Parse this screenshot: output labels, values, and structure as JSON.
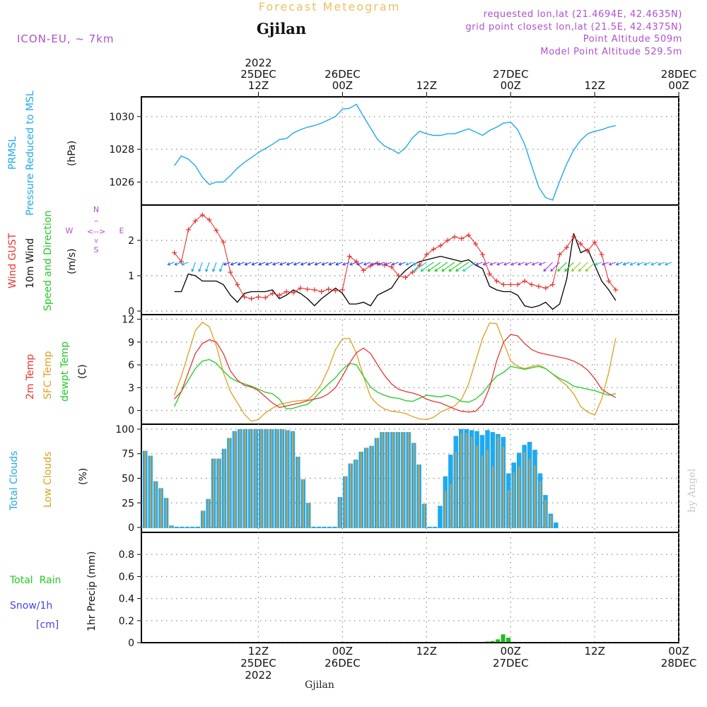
{
  "header": {
    "title": "Forecast Meteogram",
    "location": "Gjilan",
    "model": "ICON-EU, ~ 7km",
    "requested": "requested lon,lat (21.4694E, 42.4635N)",
    "grid_point": "grid point closest lon,lat (21.5E, 42.4375N)",
    "point_altitude": "Point Altitude 509m",
    "model_altitude": "Model Point Altitude 529.5m",
    "footer_location": "Gjilan",
    "watermark": "by Angel"
  },
  "time_axis": {
    "top": [
      {
        "lines": [
          "2022",
          "25DEC",
          "12Z"
        ]
      },
      {
        "lines": [
          "26DEC",
          "00Z"
        ]
      },
      {
        "lines": [
          "12Z"
        ]
      },
      {
        "lines": [
          "27DEC",
          "00Z"
        ]
      },
      {
        "lines": [
          "12Z"
        ]
      },
      {
        "lines": [
          "28DEC",
          "00Z"
        ]
      }
    ],
    "bottom": [
      {
        "lines": [
          "12Z",
          "25DEC",
          "2022"
        ]
      },
      {
        "lines": [
          "00Z",
          "26DEC"
        ]
      },
      {
        "lines": [
          "12Z"
        ]
      },
      {
        "lines": [
          "00Z",
          "27DEC"
        ]
      },
      {
        "lines": [
          "12Z"
        ]
      },
      {
        "lines": [
          "00Z",
          "28DEC"
        ]
      }
    ]
  },
  "panels": {
    "pressure": {
      "labels": [
        "PRMSL",
        "Pressure Reduced to MSL"
      ],
      "unit": "(hPa)"
    },
    "wind": {
      "labels": [
        "Wind GUST",
        "10m Wind",
        "Speed and Direction"
      ],
      "unit": "(m/s)",
      "compass": {
        "n": "N",
        "s": "S",
        "w": "W",
        "e": "E"
      }
    },
    "temp": {
      "labels": [
        "2m Temp",
        "SFC Temp",
        "dewpt Temp"
      ],
      "unit": "(C)"
    },
    "clouds": {
      "labels": [
        "Total Clouds",
        "Low Clouds"
      ],
      "unit": "(%)"
    },
    "precip": {
      "labels": [
        "Total  Rain",
        "Snow/1h",
        "[cm]"
      ],
      "unit": "1hr Precip (mm)"
    }
  },
  "colors": {
    "pressure": "#1fa9ee",
    "gust": "#ee3333",
    "wind": "#000000",
    "sfc_temp": "#dda020",
    "dewpt": "#22cc22",
    "total_cloud": "#1fa9ee",
    "low_cloud": "#c8a050",
    "rain": "#22bb22",
    "snow": "#4444ee",
    "header_purple": "#b050d0",
    "title_orange": "#f0c060"
  },
  "chart_data": [
    {
      "type": "line",
      "title": "PRMSL Pressure Reduced to MSL",
      "ylabel": "hPa",
      "x_unit": "hours from 25DEC 00Z",
      "ylim": [
        1024.6,
        1031.2
      ],
      "yticks": [
        1026,
        1028,
        1030
      ],
      "x": [
        0,
        1,
        2,
        3,
        4,
        5,
        6,
        7,
        8,
        9,
        10,
        11,
        12,
        13,
        14,
        15,
        16,
        17,
        18,
        19,
        20,
        21,
        22,
        23,
        24,
        25,
        26,
        27,
        28,
        29,
        30,
        31,
        32,
        33,
        34,
        35,
        36,
        37,
        38,
        39,
        40,
        41,
        42,
        43,
        44,
        45,
        46,
        47,
        48,
        49,
        50,
        51,
        52,
        53,
        54,
        55,
        56,
        57,
        58,
        59,
        60,
        61,
        62,
        63
      ],
      "series": [
        {
          "name": "PRMSL",
          "values": [
            1027.0,
            1027.6,
            1027.4,
            1027.0,
            1026.3,
            1025.85,
            1026.0,
            1026.0,
            1026.4,
            1026.85,
            1027.2,
            1027.5,
            1027.8,
            1028.05,
            1028.3,
            1028.6,
            1028.65,
            1029.0,
            1029.2,
            1029.35,
            1029.45,
            1029.6,
            1029.8,
            1030.0,
            1030.45,
            1030.5,
            1030.75,
            1030.0,
            1029.3,
            1028.6,
            1028.2,
            1028.0,
            1027.75,
            1028.1,
            1028.7,
            1029.1,
            1028.95,
            1028.85,
            1028.85,
            1028.95,
            1028.95,
            1029.1,
            1029.25,
            1029.05,
            1028.85,
            1029.15,
            1029.35,
            1029.6,
            1029.65,
            1029.2,
            1028.3,
            1027.0,
            1025.7,
            1025.05,
            1024.9,
            1026.05,
            1027.1,
            1027.95,
            1028.55,
            1028.95,
            1029.1,
            1029.2,
            1029.35,
            1029.45
          ]
        }
      ]
    },
    {
      "type": "line",
      "title": "Wind GUST / 10m Wind Speed and Direction",
      "ylabel": "m/s",
      "ylim": [
        -0.1,
        3.0
      ],
      "yticks": [
        0,
        1,
        2
      ],
      "series": [
        {
          "name": "Wind GUST",
          "values": [
            1.65,
            1.4,
            2.3,
            2.55,
            2.72,
            2.58,
            2.28,
            1.95,
            1.1,
            0.75,
            0.4,
            0.35,
            0.4,
            0.38,
            0.5,
            0.45,
            0.55,
            0.52,
            0.65,
            0.62,
            0.6,
            0.55,
            0.62,
            0.58,
            0.6,
            1.55,
            1.4,
            1.15,
            1.28,
            1.35,
            1.3,
            1.25,
            1.0,
            0.95,
            1.1,
            1.3,
            1.6,
            1.75,
            1.85,
            2.0,
            2.1,
            2.05,
            2.15,
            1.9,
            1.6,
            1.05,
            0.85,
            0.75,
            0.75,
            0.75,
            0.85,
            0.75,
            0.7,
            0.65,
            0.75,
            1.6,
            1.8,
            2.1,
            1.9,
            1.7,
            1.95,
            1.6,
            0.85,
            0.6
          ]
        },
        {
          "name": "10m Wind",
          "values": [
            0.55,
            0.55,
            1.05,
            1.0,
            0.85,
            0.85,
            0.85,
            0.75,
            0.45,
            0.25,
            0.5,
            0.55,
            0.55,
            0.55,
            0.6,
            0.35,
            0.45,
            0.6,
            0.5,
            0.35,
            0.15,
            0.35,
            0.5,
            0.65,
            0.5,
            0.2,
            0.2,
            0.25,
            0.15,
            0.45,
            0.55,
            0.65,
            0.95,
            1.15,
            1.3,
            1.4,
            1.45,
            1.5,
            1.55,
            1.5,
            1.45,
            1.4,
            1.45,
            1.3,
            1.2,
            0.7,
            0.6,
            0.55,
            0.55,
            0.45,
            0.15,
            0.1,
            0.15,
            0.25,
            0.05,
            0.2,
            0.9,
            2.2,
            1.65,
            1.75,
            1.3,
            0.85,
            0.6,
            0.3
          ]
        }
      ]
    },
    {
      "type": "line",
      "title": "2m Temp / SFC Temp / dewpt Temp",
      "ylabel": "C",
      "ylim": [
        -1.8,
        12.6
      ],
      "yticks": [
        0,
        3,
        6,
        9,
        12
      ],
      "series": [
        {
          "name": "2m Temp",
          "values": [
            1.5,
            2.5,
            5.0,
            7.5,
            8.8,
            9.3,
            9.0,
            7.5,
            5.2,
            4.0,
            3.3,
            3.1,
            2.6,
            1.8,
            1.0,
            0.4,
            0.6,
            0.8,
            1.0,
            1.3,
            1.5,
            1.7,
            2.2,
            3.0,
            4.5,
            6.2,
            7.6,
            8.2,
            7.5,
            6.0,
            4.6,
            3.5,
            2.8,
            2.5,
            2.3,
            2.0,
            1.5,
            1.2,
            1.0,
            0.6,
            0.2,
            -0.1,
            -0.2,
            -0.1,
            0.8,
            3.0,
            6.5,
            9.0,
            10.0,
            9.8,
            8.8,
            8.0,
            7.6,
            7.4,
            7.2,
            7.0,
            6.8,
            6.5,
            6.0,
            5.3,
            4.2,
            2.8,
            2.2,
            1.7
          ]
        },
        {
          "name": "SFC Temp",
          "values": [
            2.0,
            4.5,
            7.5,
            10.5,
            11.6,
            11.0,
            8.5,
            5.0,
            2.5,
            1.0,
            -0.5,
            -1.4,
            -1.2,
            -0.3,
            0.3,
            0.8,
            1.0,
            1.2,
            1.3,
            1.4,
            2.2,
            3.5,
            5.5,
            8.0,
            9.4,
            9.5,
            7.5,
            4.5,
            1.8,
            0.8,
            0.2,
            -0.1,
            -0.2,
            -0.4,
            -0.8,
            -1.1,
            -1.2,
            -0.9,
            -0.2,
            0.2,
            0.6,
            1.5,
            3.5,
            6.5,
            9.5,
            11.5,
            11.4,
            9.0,
            6.5,
            5.8,
            5.5,
            5.8,
            6.0,
            5.5,
            4.8,
            4.0,
            3.3,
            2.2,
            0.5,
            -0.2,
            -0.6,
            1.5,
            5.0,
            9.5
          ]
        },
        {
          "name": "dewpt Temp",
          "values": [
            0.5,
            2.5,
            4.0,
            5.5,
            6.5,
            6.7,
            6.2,
            5.2,
            4.3,
            3.8,
            3.5,
            3.2,
            2.8,
            2.4,
            2.2,
            1.5,
            0.2,
            0.3,
            0.6,
            0.8,
            1.6,
            2.6,
            3.5,
            4.3,
            5.4,
            6.2,
            6.0,
            4.5,
            3.1,
            2.4,
            2.0,
            1.7,
            1.6,
            1.3,
            1.2,
            1.6,
            2.0,
            1.9,
            1.8,
            2.0,
            1.7,
            1.2,
            1.1,
            1.5,
            2.3,
            3.5,
            4.5,
            5.0,
            5.8,
            5.6,
            5.4,
            5.6,
            5.8,
            5.5,
            4.8,
            4.2,
            3.8,
            3.2,
            3.0,
            2.8,
            2.6,
            2.3,
            2.0,
            2.2
          ]
        }
      ]
    },
    {
      "type": "bar",
      "title": "Total Clouds / Low Clouds",
      "ylabel": "%",
      "ylim": [
        -5,
        105
      ],
      "yticks": [
        0,
        25,
        50,
        75,
        100
      ],
      "series": [
        {
          "name": "Total Clouds",
          "values": [
            78,
            73,
            47,
            40,
            30,
            2,
            0,
            0,
            0,
            0,
            0,
            17,
            29,
            70,
            70,
            80,
            91,
            98,
            100,
            100,
            100,
            100,
            100,
            100,
            100,
            100,
            100,
            99,
            98,
            72,
            49,
            25,
            0,
            0,
            0,
            0,
            0,
            31,
            52,
            65,
            69,
            77,
            81,
            83,
            91,
            97,
            97,
            97,
            97,
            97,
            97,
            86,
            64,
            24,
            0,
            0,
            22,
            52,
            74,
            93,
            100,
            100,
            99,
            98,
            94,
            99,
            97,
            95,
            92,
            55,
            66,
            76,
            84,
            87,
            79,
            55,
            33,
            14,
            5
          ]
        },
        {
          "name": "Low Clouds",
          "values": [
            78,
            73,
            47,
            40,
            30,
            2,
            0,
            0,
            0,
            0,
            0,
            17,
            29,
            70,
            70,
            80,
            91,
            98,
            100,
            100,
            100,
            100,
            100,
            100,
            100,
            100,
            100,
            99,
            98,
            72,
            49,
            25,
            0,
            0,
            0,
            0,
            0,
            31,
            52,
            65,
            69,
            77,
            81,
            83,
            91,
            97,
            97,
            97,
            97,
            97,
            97,
            86,
            64,
            24,
            0,
            0,
            0,
            37,
            44,
            77,
            96,
            96,
            92,
            83,
            73,
            79,
            62,
            92,
            82,
            38,
            56,
            62,
            77,
            70,
            63,
            47,
            28,
            12,
            0
          ]
        }
      ]
    },
    {
      "type": "bar",
      "title": "1hr Precip",
      "ylabel": "1hr Precip (mm)",
      "ylim": [
        0,
        1.0
      ],
      "yticks": [
        0,
        0.2,
        0.4,
        0.6,
        0.8
      ],
      "series": [
        {
          "name": "Total Rain",
          "values": [
            0,
            0,
            0,
            0,
            0,
            0,
            0,
            0,
            0,
            0,
            0,
            0,
            0,
            0,
            0,
            0,
            0,
            0,
            0,
            0,
            0,
            0,
            0,
            0,
            0,
            0,
            0,
            0,
            0,
            0,
            0,
            0,
            0,
            0,
            0,
            0,
            0,
            0,
            0,
            0,
            0,
            0,
            0,
            0,
            0,
            0,
            0,
            0,
            0,
            0,
            0,
            0,
            0,
            0,
            0,
            0,
            0,
            0,
            0,
            0,
            0,
            0,
            0,
            0,
            0,
            0.01,
            0.015,
            0.03,
            0.075,
            0.045,
            0,
            0,
            0,
            0,
            0,
            0,
            0,
            0,
            0
          ]
        }
      ]
    }
  ]
}
